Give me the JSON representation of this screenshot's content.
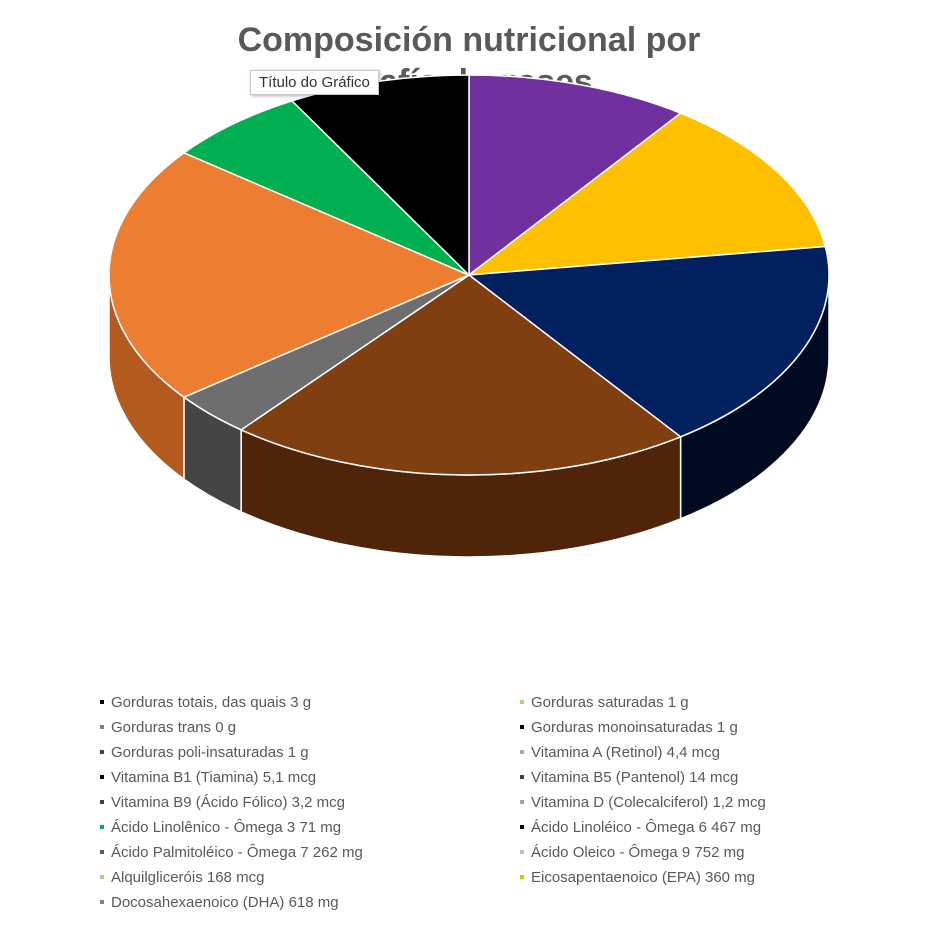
{
  "chart_data": {
    "type": "pie",
    "title_line1": "Composición nutricional por",
    "title_line2": "grafía de gases",
    "slices": [
      {
        "value": 11,
        "color": "#7030a0",
        "side": "#4b1f6e"
      },
      {
        "value": 14,
        "color": "#ffc000",
        "side": "#b38600"
      },
      {
        "value": 19,
        "color": "#002060",
        "side": "#000a20"
      },
      {
        "value": 23,
        "color": "#7f3f10",
        "side": "#4f2408"
      },
      {
        "value": 4,
        "color": "#6e6e6e",
        "side": "#454545"
      },
      {
        "value": 23,
        "color": "#ed7d31",
        "side": "#b35a1f"
      },
      {
        "value": 7,
        "color": "#00b050",
        "side": "#007a36"
      },
      {
        "value": 9,
        "color": "#000000",
        "side": "#000000"
      }
    ],
    "legend": [
      {
        "label": "Gorduras totais, das quais 3 g",
        "color": "#000000"
      },
      {
        "label": "Gorduras saturadas 1 g",
        "color": "#a9d18e"
      },
      {
        "label": "Gorduras trans 0 g",
        "color": "#7f7f7f"
      },
      {
        "label": "Gorduras monoinsaturadas 1 g",
        "color": "#000000"
      },
      {
        "label": "Gorduras poli-insaturadas 1 g",
        "color": "#375623"
      },
      {
        "label": "Vitamina A (Retinol) 4,4 mcg",
        "color": "#a9a9a9"
      },
      {
        "label": "Vitamina B1 (Tiamina) 5,1 mcg",
        "color": "#000000"
      },
      {
        "label": "Vitamina B5 (Pantenol) 14 mcg",
        "color": "#404040"
      },
      {
        "label": "Vitamina B9 (Ácido Fólico) 3,2 mcg",
        "color": "#404040"
      },
      {
        "label": "Vitamina D (Colecalciferol) 1,2 mcg",
        "color": "#a5a5a5"
      },
      {
        "label": "Ácido Linolênico - Ômega 3 71 mg",
        "color": "#00b050"
      },
      {
        "label": "Ácido Linoléico - Ômega 6 467 mg",
        "color": "#000000"
      },
      {
        "label": "Ácido Palmitoléico - Ômega 7 262 mg",
        "color": "#595959"
      },
      {
        "label": "Ácido Oleico - Ômega 9 752 mg",
        "color": "#bfbfbf"
      },
      {
        "label": "Alquilgliceróis 168 mcg",
        "color": "#a9d18e"
      },
      {
        "label": "Eicosapentaenoico (EPA) 360 mg",
        "color": "#c9c900"
      },
      {
        "label": "Docosahexaenoico (DHA) 618 mg",
        "color": "#808080"
      }
    ]
  },
  "tooltip": {
    "text": "Título do Gráfico"
  }
}
